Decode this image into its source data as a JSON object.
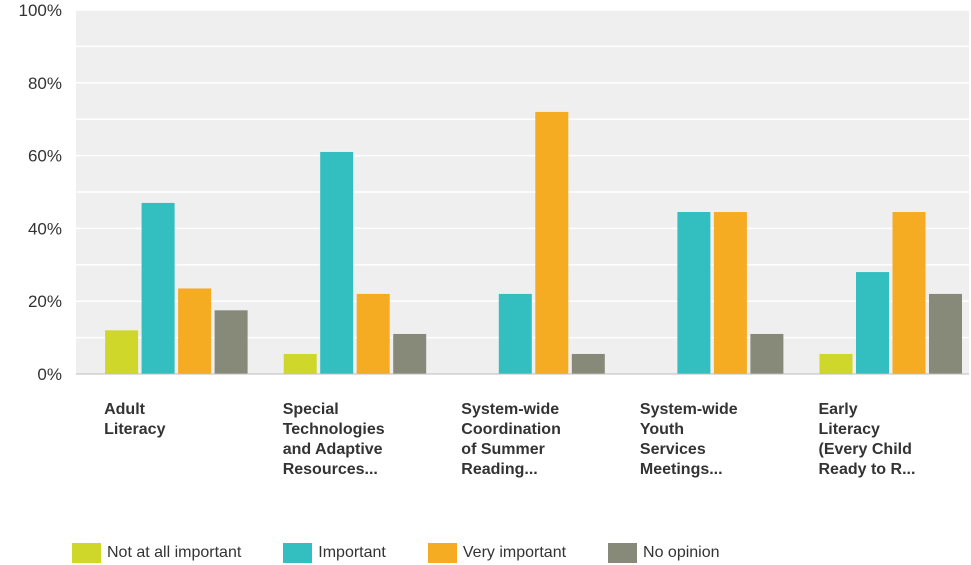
{
  "chart_data": {
    "type": "bar",
    "categories": [
      [
        "Adult",
        "Literacy"
      ],
      [
        "Special",
        "Technologies",
        "and Adaptive",
        "Resources..."
      ],
      [
        "System-wide",
        "Coordination",
        "of Summer",
        "Reading..."
      ],
      [
        "System-wide",
        "Youth",
        "Services",
        "Meetings..."
      ],
      [
        "Early",
        "Literacy",
        "(Every Child",
        "Ready to R..."
      ]
    ],
    "series": [
      {
        "name": "Not at all important",
        "color": "#cfd72a",
        "values": [
          12,
          5.5,
          0,
          0,
          5.5
        ]
      },
      {
        "name": "Important",
        "color": "#33bec0",
        "values": [
          47,
          61,
          22,
          44.5,
          28
        ]
      },
      {
        "name": "Very important",
        "color": "#f5ab22",
        "values": [
          23.5,
          22,
          72,
          44.5,
          44.5
        ]
      },
      {
        "name": "No opinion",
        "color": "#878a78",
        "values": [
          17.5,
          11,
          5.5,
          11,
          22
        ]
      }
    ],
    "yticks": [
      "0%",
      "20%",
      "40%",
      "60%",
      "80%",
      "100%"
    ],
    "ylim": [
      0,
      100
    ],
    "grid": true,
    "legend_position": "bottom"
  }
}
